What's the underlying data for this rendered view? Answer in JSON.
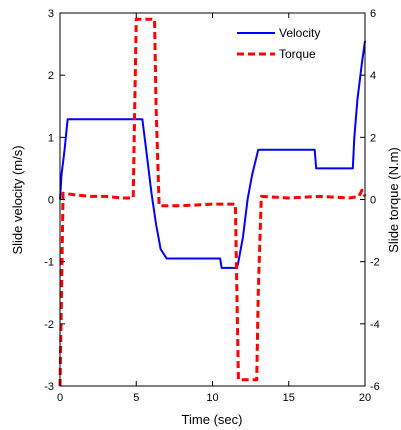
{
  "chart_data": {
    "type": "line",
    "xlabel": "Time (sec)",
    "ylabel": "Slide velocity (m/s)",
    "y2label": "Slide torque (N.m)",
    "xlim": [
      0,
      20
    ],
    "ylim": [
      -3,
      3
    ],
    "y2lim": [
      -6,
      6
    ],
    "xticks": [
      "0",
      "5",
      "10",
      "15",
      "20"
    ],
    "yticks": [
      "-3",
      "-2",
      "-1",
      "0",
      "1",
      "2",
      "3"
    ],
    "y2ticks": [
      "-6",
      "-4",
      "-2",
      "0",
      "2",
      "4",
      "6"
    ],
    "grid": false,
    "legend": {
      "position": "top-right",
      "items": [
        "Velocity",
        "Torque"
      ]
    },
    "series": [
      {
        "name": "Velocity",
        "axis": "left",
        "color": "#0000ff",
        "style": "solid",
        "x": [
          0,
          0.1,
          0.3,
          0.5,
          0.7,
          1.5,
          3,
          4.5,
          5.4,
          5.6,
          5.8,
          6.0,
          6.3,
          6.6,
          7,
          9,
          10.5,
          10.6,
          11.2,
          11.6,
          11.7,
          12.0,
          12.3,
          12.6,
          12.9,
          13.0,
          15,
          16.7,
          16.8,
          19.2,
          19.3,
          19.5,
          19.8,
          20
        ],
        "y": [
          0,
          0.4,
          0.8,
          1.29,
          1.29,
          1.29,
          1.29,
          1.29,
          1.29,
          0.9,
          0.5,
          0.1,
          -0.4,
          -0.8,
          -0.95,
          -0.95,
          -0.95,
          -1.1,
          -1.1,
          -1.1,
          -1.0,
          -0.6,
          0.0,
          0.4,
          0.7,
          0.8,
          0.8,
          0.8,
          0.5,
          0.5,
          1.0,
          1.6,
          2.2,
          2.55
        ]
      },
      {
        "name": "Torque",
        "axis": "right",
        "color": "#ff0000",
        "style": "dashed",
        "x": [
          0,
          0.1,
          0.2,
          1,
          2,
          3,
          4,
          4.8,
          4.9,
          5.0,
          6.2,
          6.3,
          6.5,
          8,
          10,
          11.5,
          11.6,
          11.7,
          12.9,
          13.0,
          13.2,
          15,
          17,
          19,
          19.6,
          19.8,
          20
        ],
        "y": [
          -6,
          -3,
          0.2,
          0.15,
          0.1,
          0.1,
          0.05,
          0.05,
          3,
          5.8,
          5.8,
          3,
          -0.2,
          -0.2,
          -0.15,
          -0.15,
          -3,
          -5.8,
          -5.8,
          -3,
          0.1,
          0.05,
          0.1,
          0.05,
          0.1,
          0.3,
          0.1
        ]
      }
    ]
  }
}
